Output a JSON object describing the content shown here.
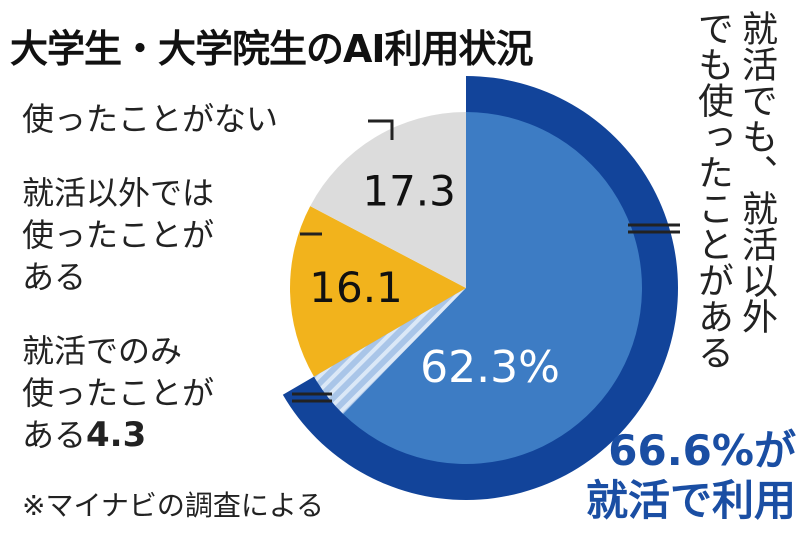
{
  "title": "大学生・大学院生のAI利用状況",
  "labels": {
    "never_used": "使ったことがない",
    "outside_job": [
      "就活以外では",
      "使ったことが",
      "ある"
    ],
    "only_job": [
      "就活でのみ",
      "使ったことが",
      "ある"
    ],
    "only_job_value": "4.3",
    "both": [
      "就活でも、就活以外",
      "でも使ったことがある"
    ]
  },
  "summary": [
    "66.6%が",
    "就活で利用"
  ],
  "source_note": "※マイナビの調査による",
  "colors": {
    "both": "#3d7cc4",
    "outer_ring": "#12449a",
    "only_job": "#a9c5e8",
    "outside_job": "#f2b31c",
    "never_used": "#dcdcdc",
    "summary_text": "#1a4ea3"
  },
  "chart_data": {
    "type": "pie",
    "title": "大学生・大学院生のAI利用状況",
    "unit": "%",
    "slices": [
      {
        "name": "就活でも、就活以外でも使ったことがある",
        "value": 62.3,
        "label": "62.3%",
        "color": "#3d7cc4"
      },
      {
        "name": "就活でのみ使ったことがある",
        "value": 4.3,
        "label": "4.3",
        "color": "#a9c5e8"
      },
      {
        "name": "就活以外では使ったことがある",
        "value": 16.1,
        "label": "16.1",
        "color": "#f2b31c"
      },
      {
        "name": "使ったことがない",
        "value": 17.3,
        "label": "17.3",
        "color": "#dcdcdc"
      }
    ],
    "highlight_total": {
      "value": 66.6,
      "label": "66.6%が就活で利用"
    }
  }
}
